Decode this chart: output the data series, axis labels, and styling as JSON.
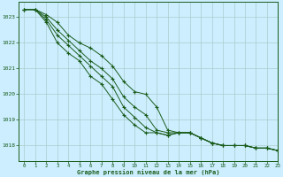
{
  "title": "Graphe pression niveau de la mer (hPa)",
  "bg_color": "#cceeff",
  "grid_color": "#aacccc",
  "line_color": "#1a5c1a",
  "xlim": [
    -0.5,
    23
  ],
  "ylim": [
    1017.4,
    1023.6
  ],
  "yticks": [
    1018,
    1019,
    1020,
    1021,
    1022,
    1023
  ],
  "xticks": [
    0,
    1,
    2,
    3,
    4,
    5,
    6,
    7,
    8,
    9,
    10,
    11,
    12,
    13,
    14,
    15,
    16,
    17,
    18,
    19,
    20,
    21,
    22,
    23
  ],
  "series": [
    [
      1023.3,
      1023.3,
      1023.1,
      1022.8,
      1022.3,
      1022.0,
      1021.8,
      1021.5,
      1021.1,
      1020.5,
      1020.1,
      1020.0,
      1019.5,
      1018.6,
      1018.5,
      1018.5,
      1018.3,
      1018.1,
      1018.0,
      1018.0,
      1018.0,
      1017.9,
      1017.9,
      1017.8
    ],
    [
      1023.3,
      1023.3,
      1023.0,
      1022.5,
      1022.1,
      1021.7,
      1021.3,
      1021.0,
      1020.6,
      1019.9,
      1019.5,
      1019.2,
      1018.6,
      1018.5,
      1018.5,
      1018.5,
      1018.3,
      1018.1,
      1018.0,
      1018.0,
      1018.0,
      1017.9,
      1017.9,
      1017.8
    ],
    [
      1023.3,
      1023.3,
      1022.9,
      1022.3,
      1021.9,
      1021.5,
      1021.1,
      1020.7,
      1020.3,
      1019.5,
      1019.1,
      1018.7,
      1018.5,
      1018.4,
      1018.5,
      1018.5,
      1018.3,
      1018.1,
      1018.0,
      1018.0,
      1018.0,
      1017.9,
      1017.9,
      1017.8
    ],
    [
      1023.3,
      1023.3,
      1022.8,
      1022.0,
      1021.6,
      1021.3,
      1020.7,
      1020.4,
      1019.8,
      1019.2,
      1018.8,
      1018.5,
      1018.5,
      1018.4,
      1018.5,
      1018.5,
      1018.3,
      1018.1,
      1018.0,
      1018.0,
      1018.0,
      1017.9,
      1017.9,
      1017.8
    ]
  ]
}
